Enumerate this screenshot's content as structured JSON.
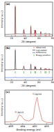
{
  "chart_data": [
    {
      "type": "line",
      "title": "(a)",
      "x_label": "2θ (degree)",
      "y_label": "Intensity (a.u.)",
      "xlim": [
        10,
        80
      ],
      "xticks": [
        20,
        40,
        60,
        80
      ],
      "ylim": [
        0,
        110
      ],
      "tick_labels": "x",
      "series": [
        {
          "type": "line",
          "color": "#222222",
          "x": [
            10,
            24.5,
            25.3,
            26.1,
            36.5,
            37.8,
            39,
            47.5,
            48.1,
            48.8,
            53.3,
            53.9,
            54.6,
            55.1,
            55.8,
            62,
            62.7,
            63.4,
            68.3,
            68.8,
            69.5,
            70.3,
            71,
            74.5,
            75.1,
            75.8,
            80
          ],
          "values": [
            6,
            7,
            95,
            8,
            7,
            22,
            7,
            7,
            30,
            7,
            7,
            20,
            10,
            19,
            7,
            7,
            15,
            7,
            7,
            10,
            8,
            10,
            7,
            7,
            9,
            7,
            6
          ]
        },
        {
          "type": "stem",
          "color": "#d62728",
          "x": [
            25.3,
            37.8,
            48.1,
            53.9,
            55.1,
            62.7,
            68.8,
            70.3,
            75.1
          ],
          "values": [
            100,
            20,
            35,
            20,
            20,
            14,
            6,
            7,
            10
          ]
        }
      ]
    },
    {
      "type": "line",
      "title": "(b)",
      "x_label": "2θ (degree)",
      "y_label": "Intensity (a.u.)",
      "xlim": [
        10,
        80
      ],
      "xticks": [
        20,
        40,
        60,
        80
      ],
      "ylim": [
        -40,
        110
      ],
      "tick_labels": "x",
      "legend": "upper right",
      "series": [
        {
          "name": "Observed",
          "type": "line",
          "marker": "circle",
          "color": "#d62728",
          "x": [
            10,
            24.5,
            25.3,
            26.1,
            36.5,
            37.8,
            39,
            47.5,
            48.1,
            48.8,
            53.3,
            53.9,
            54.6,
            55.1,
            55.8,
            62,
            62.7,
            63.4,
            68.3,
            68.8,
            69.5,
            70.3,
            71,
            74.5,
            75.1,
            75.8,
            80
          ],
          "values": [
            6,
            7,
            95,
            8,
            7,
            22,
            7,
            7,
            30,
            7,
            7,
            20,
            10,
            19,
            7,
            7,
            15,
            7,
            7,
            10,
            8,
            10,
            7,
            7,
            9,
            7,
            6
          ]
        },
        {
          "name": "Calculated",
          "type": "line",
          "color": "#111111",
          "x": [
            10,
            24.5,
            25.3,
            26.1,
            36.5,
            37.8,
            39,
            47.5,
            48.1,
            48.8,
            53.3,
            53.9,
            54.6,
            55.1,
            55.8,
            62,
            62.7,
            63.4,
            68.3,
            68.8,
            69.5,
            70.3,
            71,
            74.5,
            75.1,
            75.8,
            80
          ],
          "values": [
            6,
            7,
            92,
            8,
            7,
            21,
            7,
            7,
            29,
            7,
            7,
            19,
            10,
            18,
            7,
            7,
            14,
            7,
            7,
            10,
            8,
            10,
            7,
            7,
            9,
            7,
            6
          ]
        },
        {
          "name": "Difference",
          "type": "line",
          "color": "#1f4fd6",
          "x": [
            10,
            24.5,
            25.3,
            26.1,
            36.5,
            37.8,
            39,
            47.5,
            48.1,
            48.8,
            53.3,
            53.9,
            54.6,
            55.1,
            55.8,
            62,
            62.7,
            63.4,
            68.3,
            68.8,
            69.5,
            70.3,
            71,
            74.5,
            75.1,
            75.8,
            80
          ],
          "values": [
            -28,
            -28,
            -25,
            -28,
            -28,
            -27,
            -28,
            -28,
            -27,
            -28,
            -28,
            -27,
            -28,
            -27,
            -28,
            -28,
            -27,
            -28,
            -28,
            -28,
            -28,
            -28,
            -28,
            -28,
            -28,
            -28,
            -28
          ]
        },
        {
          "name": "Bragg position",
          "type": "stem",
          "color": "#2ca02c",
          "x": [
            25.3,
            37.8,
            48.1,
            53.9,
            55.1,
            62.7,
            68.8,
            70.3,
            75.1
          ],
          "values": [
            -10,
            -10,
            -10,
            -10,
            -10,
            -10,
            -10,
            -10,
            -10
          ]
        }
      ]
    },
    {
      "type": "line",
      "title": "(c)",
      "x_label": "Binding energy (eV)",
      "y_label": "Intensity (a.u.)",
      "xlim": [
        470,
        454
      ],
      "xticks": [
        468,
        464,
        460,
        456
      ],
      "ylim": [
        0,
        120
      ],
      "tick_labels": "x",
      "annotations": [
        {
          "text": "Ti 2p1/2",
          "x": 465.2,
          "y": 40
        },
        {
          "text": "Ti 2p3/2",
          "x": 459.2,
          "y": 103
        }
      ],
      "series": [
        {
          "type": "line",
          "color": "#c0392b",
          "x": [
            470,
            467,
            466,
            465.2,
            464.5,
            463.5,
            462,
            460.5,
            459.8,
            459.2,
            458.6,
            457.5,
            456,
            454
          ],
          "values": [
            8,
            10,
            14,
            33,
            30,
            16,
            12,
            20,
            70,
            95,
            60,
            14,
            7,
            5
          ]
        }
      ]
    }
  ]
}
